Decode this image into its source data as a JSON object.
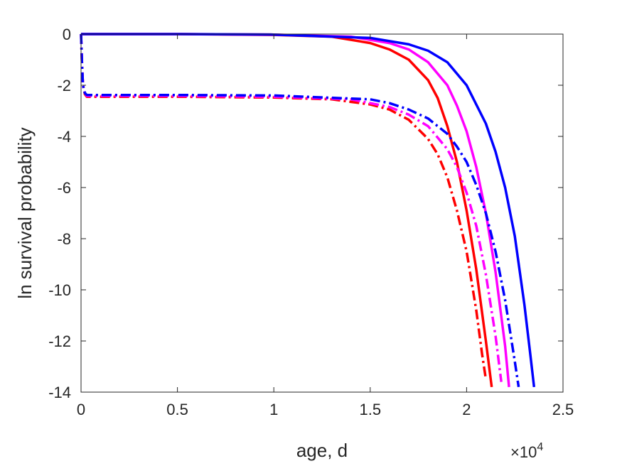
{
  "chart_data": {
    "type": "line",
    "title": "",
    "xlabel": "age, d",
    "ylabel": "ln survival probability",
    "x_exponent_label": {
      "base": "×10",
      "exp": "4"
    },
    "xlim": [
      0,
      25000
    ],
    "ylim": [
      -14,
      0
    ],
    "x_ticks": [
      0,
      5000,
      10000,
      15000,
      20000,
      25000
    ],
    "x_tick_labels": [
      "0",
      "0.5",
      "1",
      "1.5",
      "2",
      "2.5"
    ],
    "y_ticks": [
      0,
      -2,
      -4,
      -6,
      -8,
      -10,
      -12,
      -14
    ],
    "y_tick_labels": [
      "0",
      "-2",
      "-4",
      "-6",
      "-8",
      "-10",
      "-12",
      "-14"
    ],
    "grid": false,
    "series": [
      {
        "color": "#ff0000",
        "style": "solid",
        "x": [
          0,
          5000,
          10000,
          13000,
          15000,
          16000,
          17000,
          18000,
          18500,
          19000,
          19500,
          20000,
          20500,
          21000,
          21300
        ],
        "y": [
          0,
          0,
          -0.03,
          -0.1,
          -0.35,
          -0.6,
          -1.0,
          -1.8,
          -2.5,
          -3.6,
          -5.0,
          -6.9,
          -9.2,
          -12.0,
          -13.8
        ]
      },
      {
        "color": "#ff00ff",
        "style": "solid",
        "x": [
          0,
          5000,
          10000,
          14000,
          16000,
          17000,
          18000,
          19000,
          19500,
          20000,
          20500,
          21000,
          21500,
          22000,
          22200
        ],
        "y": [
          0,
          0,
          -0.02,
          -0.1,
          -0.35,
          -0.6,
          -1.1,
          -2.0,
          -2.8,
          -3.8,
          -5.2,
          -7.0,
          -9.3,
          -12.2,
          -13.8
        ]
      },
      {
        "color": "#0000ff",
        "style": "solid",
        "x": [
          0,
          5000,
          10000,
          15000,
          17000,
          18000,
          19000,
          20000,
          21000,
          21500,
          22000,
          22500,
          23000,
          23300,
          23500
        ],
        "y": [
          0,
          0,
          -0.02,
          -0.15,
          -0.4,
          -0.65,
          -1.1,
          -2.0,
          -3.5,
          -4.6,
          -6.0,
          -7.9,
          -10.6,
          -12.5,
          -13.8
        ]
      },
      {
        "color": "#ff0000",
        "style": "dashdot",
        "x": [
          0,
          50,
          100,
          200,
          300,
          5000,
          10000,
          13000,
          15000,
          16000,
          17000,
          18000,
          18500,
          19000,
          19500,
          20000,
          20500,
          20800,
          21000
        ],
        "y": [
          0,
          -1.2,
          -2.0,
          -2.35,
          -2.45,
          -2.45,
          -2.48,
          -2.55,
          -2.75,
          -2.95,
          -3.35,
          -4.1,
          -4.7,
          -5.6,
          -6.9,
          -8.5,
          -10.8,
          -12.5,
          -13.5
        ]
      },
      {
        "color": "#ff00ff",
        "style": "dashdot",
        "x": [
          0,
          50,
          100,
          200,
          300,
          5000,
          10000,
          14000,
          16000,
          17000,
          18000,
          19000,
          19500,
          20000,
          20500,
          21000,
          21500,
          21800
        ],
        "y": [
          0,
          -1.2,
          -2.0,
          -2.3,
          -2.42,
          -2.42,
          -2.45,
          -2.55,
          -2.85,
          -3.15,
          -3.6,
          -4.5,
          -5.2,
          -6.2,
          -7.5,
          -9.4,
          -11.8,
          -13.6
        ]
      },
      {
        "color": "#0000ff",
        "style": "dashdot",
        "x": [
          0,
          50,
          100,
          200,
          300,
          5000,
          10000,
          15000,
          16000,
          17000,
          18000,
          19000,
          19500,
          20000,
          20500,
          21000,
          21500,
          22000,
          22500,
          22700
        ],
        "y": [
          0,
          -1.2,
          -2.0,
          -2.3,
          -2.38,
          -2.38,
          -2.4,
          -2.55,
          -2.7,
          -2.95,
          -3.3,
          -3.9,
          -4.4,
          -5.0,
          -5.9,
          -7.0,
          -8.5,
          -10.4,
          -12.8,
          -13.8
        ]
      }
    ]
  }
}
